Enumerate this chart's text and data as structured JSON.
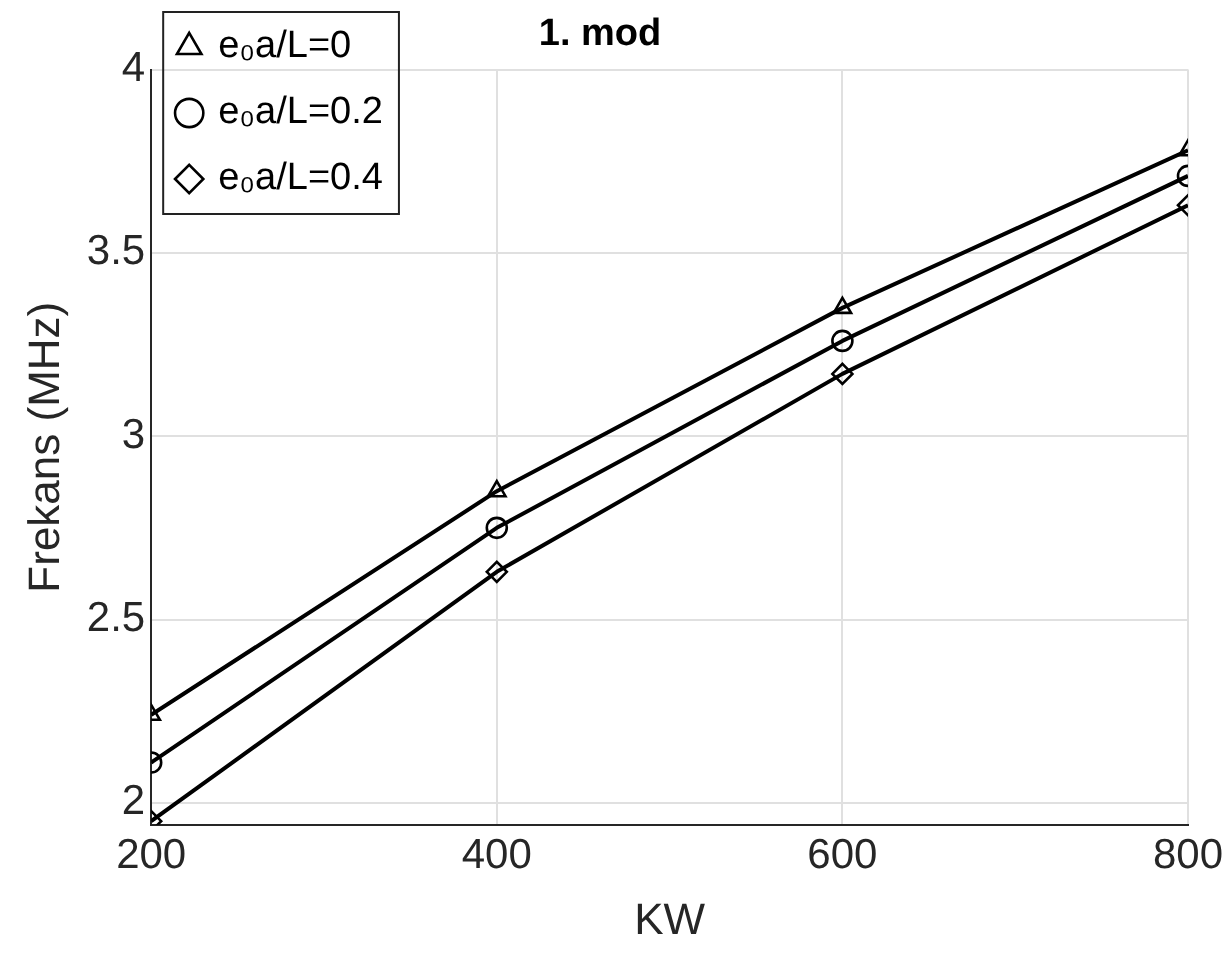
{
  "chart_data": {
    "type": "line",
    "title": "1. mod",
    "xlabel": "KW",
    "ylabel": "Frekans (MHz)",
    "x": [
      200,
      400,
      600,
      800
    ],
    "series": [
      {
        "name": "e₀a/L=0",
        "color": "#000000",
        "marker": "triangle",
        "values": [
          2.24,
          2.85,
          3.35,
          3.78
        ]
      },
      {
        "name": "e₀a/L=0.2",
        "color": "#000000",
        "marker": "circle",
        "values": [
          2.11,
          2.75,
          3.26,
          3.71
        ]
      },
      {
        "name": "e₀a/L=0.4",
        "color": "#000000",
        "marker": "diamond",
        "values": [
          1.95,
          2.63,
          3.17,
          3.63
        ]
      }
    ],
    "xlim": [
      200,
      800
    ],
    "xticks": [
      200,
      400,
      600,
      800
    ],
    "ylim": [
      1.94,
      4
    ],
    "yticks": [
      2,
      2.5,
      3,
      3.5,
      4
    ],
    "grid": true,
    "legend": "top left",
    "line_style": "solid"
  }
}
